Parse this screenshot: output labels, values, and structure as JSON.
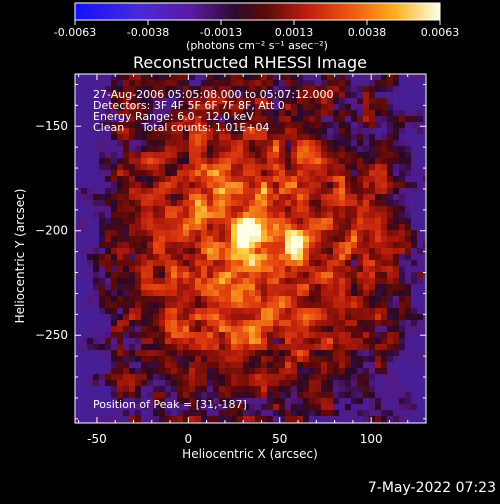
{
  "stamp": "7-May-2022 07:23",
  "colorbar": {
    "tick_labels": [
      "-0.0063",
      "-0.0038",
      "-0.0013",
      "0.0013",
      "0.0038",
      "0.0063"
    ],
    "units_text": "(photons cm⁻² s⁻¹ asec⁻²)",
    "range": [
      -0.0063,
      0.0063
    ]
  },
  "chart_data": {
    "type": "heatmap",
    "title": "Reconstructed RHESSI Image",
    "xlabel": "Heliocentric X (arcsec)",
    "ylabel": "Heliocentric Y (arcsec)",
    "xlim": [
      -62,
      130
    ],
    "ylim": [
      -292,
      -125
    ],
    "x_ticks": [
      -50,
      0,
      50,
      100
    ],
    "y_ticks": [
      -150,
      -200,
      -250
    ],
    "annotations": [
      "27-Aug-2006 05:05:08.000 to 05:07:12.000",
      "Detectors: 3F 4F 5F 6F 7F 8F, Att 0",
      "Energy Range: 6.0 - 12.0 keV",
      "Clean     Total counts: 1.01E+04"
    ],
    "peak_label": "Position of Peak = [31,-187]",
    "peak": [
      31,
      -187
    ]
  }
}
